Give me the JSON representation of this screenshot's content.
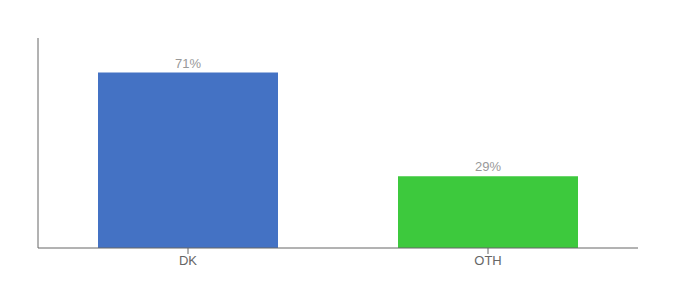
{
  "chart_data": {
    "type": "bar",
    "categories": [
      "DK",
      "OTH"
    ],
    "values": [
      71,
      29
    ],
    "colors": [
      "#4472c4",
      "#3dc93d"
    ],
    "value_labels": [
      "71%",
      "29%"
    ],
    "data_labels": true,
    "ylim": [
      0,
      85
    ],
    "tick_labels": "x",
    "grid": false
  }
}
